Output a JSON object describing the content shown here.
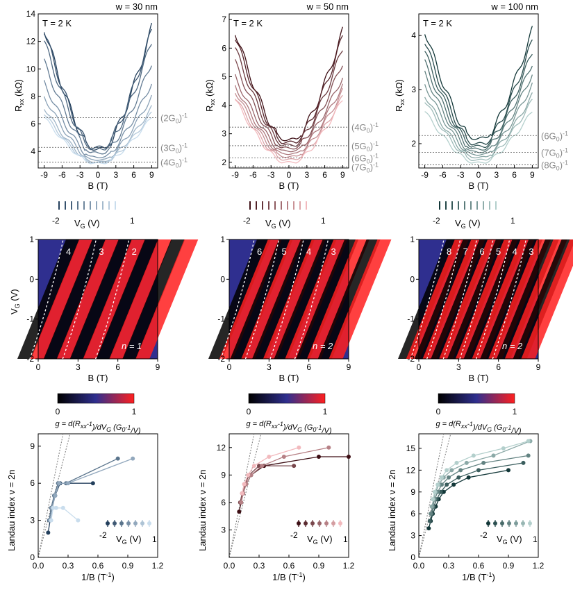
{
  "colors": {
    "blue_dark": "#233f5c",
    "blue_light": "#c9dded",
    "red_dark": "#3d0e14",
    "red_light": "#f2b9bd",
    "teal_dark": "#123738",
    "teal_light": "#b3cfcc",
    "map_black": "#000000",
    "map_blue": "#2f2f8f",
    "map_red": "#ff1f1f",
    "ref_line": "#555555"
  },
  "ylabel_rxx": "R",
  "ylabel_rxx_sub": "xx",
  "ylabel_rxx_unit": " (kΩ)",
  "xlabel_b": "B (T)",
  "ylabel_vg": "V",
  "ylabel_vg_sub": "G",
  "ylabel_vg_unit": " (V)",
  "xlabel_invb": "1/B (T",
  "xlabel_invb_sup": "-1",
  "xlabel_invb_end": ")",
  "ylabel_landau": "Landau index ν = 2n",
  "temp_label": "T = 2 K",
  "vg_legend": {
    "min": "-2",
    "max": "1",
    "label": "V",
    "sub": "G",
    "unit": " (V)"
  },
  "cbar": {
    "min": "0",
    "max": "1",
    "label": "g = d(R",
    "sub": "xx",
    "sup": "-1",
    "mid": ")/dV",
    "sub2": "G",
    "open": " (G",
    "sub3": "0",
    "sup2": "-1",
    "end": "/V)"
  },
  "panels": [
    {
      "width_label": "w = 30 nm",
      "rxx": {
        "ylim": [
          2.8,
          14
        ],
        "yticks": [
          4,
          6,
          8,
          10,
          12,
          14
        ],
        "xticks": [
          -9,
          -6,
          -3,
          0,
          3,
          6,
          9
        ],
        "plateaus": [
          {
            "value": 6.45,
            "label": "(2G",
            "sub": "0",
            "end": ")",
            "sup": "-1"
          },
          {
            "value": 4.3,
            "label": "(3G",
            "sub": "0",
            "end": ")",
            "sup": "-1"
          },
          {
            "value": 3.22,
            "label": "(4G",
            "sub": "0",
            "end": ")",
            "sup": "-1"
          }
        ],
        "curves_peak": [
          13.0,
          12.8,
          12.0,
          10.5,
          9.0,
          8.0,
          7.2,
          6.8,
          6.5
        ],
        "curves_min": [
          4.2,
          4.3,
          4.2,
          3.9,
          3.6,
          3.4,
          3.25,
          3.2,
          3.15
        ]
      },
      "map": {
        "xticks": [
          0,
          3,
          6,
          9
        ],
        "yticks": [
          -2,
          -1,
          0,
          1
        ],
        "xlim": [
          0,
          9
        ],
        "ylim": [
          -2,
          1
        ],
        "n_labels": [
          "4",
          "3",
          "2"
        ],
        "n_equals": "n = 1"
      },
      "landau": {
        "xticks": [
          "0.0",
          "0.3",
          "0.6",
          "0.9",
          "1.2"
        ],
        "yticks": [
          0,
          3,
          6,
          9
        ],
        "ylim": [
          0,
          10
        ],
        "series": [
          [
            [
              0.1,
              2
            ],
            [
              0.12,
              3
            ],
            [
              0.14,
              4
            ],
            [
              0.17,
              5
            ],
            [
              0.22,
              6
            ],
            [
              0.55,
              6
            ]
          ],
          [
            [
              0.11,
              3
            ],
            [
              0.13,
              4
            ],
            [
              0.16,
              5
            ],
            [
              0.2,
              6
            ],
            [
              0.28,
              6
            ],
            [
              0.8,
              8
            ]
          ],
          [
            [
              0.12,
              3
            ],
            [
              0.14,
              4
            ],
            [
              0.17,
              5
            ],
            [
              0.21,
              6
            ],
            [
              0.3,
              6
            ],
            [
              0.95,
              8
            ]
          ],
          [
            [
              0.13,
              3
            ],
            [
              0.15,
              4
            ],
            [
              0.18,
              4
            ],
            [
              0.25,
              4
            ],
            [
              0.4,
              3
            ]
          ]
        ]
      }
    },
    {
      "width_label": "w = 50 nm",
      "rxx": {
        "ylim": [
          1.8,
          7.2
        ],
        "yticks": [
          2,
          3,
          4,
          5,
          6,
          7
        ],
        "xticks": [
          -9,
          -6,
          -3,
          0,
          3,
          6,
          9
        ],
        "plateaus": [
          {
            "value": 3.23,
            "label": "(4G",
            "sub": "0",
            "end": ")",
            "sup": "-1"
          },
          {
            "value": 2.58,
            "label": "(5G",
            "sub": "0",
            "end": ")",
            "sup": "-1"
          },
          {
            "value": 2.15,
            "label": "(6G",
            "sub": "0",
            "end": ")",
            "sup": "-1"
          },
          {
            "value": 1.84,
            "label": "(7G",
            "sub": "0",
            "end": ")",
            "sup": "-1"
          }
        ],
        "curves_peak": [
          6.6,
          6.4,
          6.0,
          5.5,
          5.0,
          4.7,
          4.5,
          4.3,
          4.2
        ],
        "curves_min": [
          2.8,
          2.7,
          2.6,
          2.5,
          2.4,
          2.3,
          2.2,
          2.1,
          2.0
        ]
      },
      "map": {
        "xticks": [
          0,
          3,
          6,
          9
        ],
        "yticks": [
          -2,
          -1,
          0,
          1
        ],
        "xlim": [
          0,
          9
        ],
        "ylim": [
          -2,
          1
        ],
        "n_labels": [
          "6",
          "5",
          "4",
          "3"
        ],
        "n_equals": "n = 2"
      },
      "landau": {
        "xticks": [
          "0.0",
          "0.3",
          "0.6",
          "0.9",
          "1.2"
        ],
        "yticks": [
          3,
          6,
          9,
          12
        ],
        "ylim": [
          0,
          13.5
        ],
        "series": [
          [
            [
              0.1,
              5
            ],
            [
              0.12,
              6
            ],
            [
              0.14,
              7
            ],
            [
              0.17,
              8
            ],
            [
              0.22,
              9
            ],
            [
              0.35,
              10
            ],
            [
              0.9,
              11
            ],
            [
              1.2,
              11
            ]
          ],
          [
            [
              0.11,
              6
            ],
            [
              0.13,
              7
            ],
            [
              0.16,
              8
            ],
            [
              0.2,
              9
            ],
            [
              0.3,
              10
            ],
            [
              0.65,
              10
            ]
          ],
          [
            [
              0.12,
              6
            ],
            [
              0.14,
              7
            ],
            [
              0.17,
              8
            ],
            [
              0.22,
              9
            ],
            [
              0.33,
              10
            ],
            [
              0.55,
              11
            ],
            [
              1.0,
              12
            ]
          ],
          [
            [
              0.13,
              7
            ],
            [
              0.15,
              8
            ],
            [
              0.19,
              9
            ],
            [
              0.25,
              10
            ],
            [
              0.4,
              11
            ],
            [
              0.7,
              12
            ]
          ]
        ]
      }
    },
    {
      "width_label": "w = 100 nm",
      "rxx": {
        "ylim": [
          1.55,
          4.4
        ],
        "yticks": [
          2,
          3,
          4
        ],
        "xticks": [
          -9,
          -6,
          -3,
          0,
          3,
          6,
          9
        ],
        "plateaus": [
          {
            "value": 2.15,
            "label": "(6G",
            "sub": "0",
            "end": ")",
            "sup": "-1"
          },
          {
            "value": 1.84,
            "label": "(7G",
            "sub": "0",
            "end": ")",
            "sup": "-1"
          },
          {
            "value": 1.61,
            "label": "(8G",
            "sub": "0",
            "end": ")",
            "sup": "-1"
          }
        ],
        "curves_peak": [
          4.1,
          3.9,
          3.7,
          3.5,
          3.3,
          3.1,
          2.9,
          2.8,
          2.6
        ],
        "curves_min": [
          2.1,
          2.0,
          1.95,
          1.9,
          1.85,
          1.8,
          1.75,
          1.7,
          1.65
        ]
      },
      "map": {
        "xticks": [
          0,
          3,
          6,
          9
        ],
        "yticks": [
          -2,
          -1,
          0,
          1
        ],
        "xlim": [
          0,
          9
        ],
        "ylim": [
          -2,
          1
        ],
        "n_labels": [
          "8",
          "7",
          "6",
          "5",
          "4",
          "3"
        ],
        "n_equals": "n = 2"
      },
      "landau": {
        "xticks": [
          "0.0",
          "0.3",
          "0.6",
          "0.9",
          "1.2"
        ],
        "yticks": [
          0,
          3,
          6,
          9,
          12,
          15
        ],
        "ylim": [
          0,
          17
        ],
        "series": [
          [
            [
              0.1,
              4
            ],
            [
              0.12,
              5
            ],
            [
              0.14,
              6
            ],
            [
              0.17,
              7
            ],
            [
              0.2,
              8
            ],
            [
              0.25,
              9
            ],
            [
              0.35,
              10
            ],
            [
              0.5,
              11
            ],
            [
              0.9,
              12
            ]
          ],
          [
            [
              0.11,
              5
            ],
            [
              0.13,
              6
            ],
            [
              0.15,
              7
            ],
            [
              0.18,
              8
            ],
            [
              0.22,
              9
            ],
            [
              0.28,
              10
            ],
            [
              0.4,
              11
            ],
            [
              0.6,
              12
            ],
            [
              1.05,
              13
            ]
          ],
          [
            [
              0.12,
              6
            ],
            [
              0.14,
              7
            ],
            [
              0.16,
              8
            ],
            [
              0.19,
              9
            ],
            [
              0.23,
              10
            ],
            [
              0.3,
              11
            ],
            [
              0.42,
              12
            ],
            [
              0.65,
              13
            ],
            [
              1.1,
              14
            ]
          ],
          [
            [
              0.13,
              7
            ],
            [
              0.15,
              8
            ],
            [
              0.17,
              9
            ],
            [
              0.2,
              10
            ],
            [
              0.25,
              11
            ],
            [
              0.33,
              12
            ],
            [
              0.48,
              13
            ],
            [
              0.75,
              14
            ],
            [
              1.12,
              16
            ]
          ],
          [
            [
              0.14,
              8
            ],
            [
              0.16,
              9
            ],
            [
              0.19,
              10
            ],
            [
              0.23,
              11
            ],
            [
              0.28,
              12
            ],
            [
              0.38,
              13
            ],
            [
              0.55,
              14
            ],
            [
              0.85,
              15
            ],
            [
              1.1,
              16
            ]
          ]
        ]
      }
    }
  ]
}
